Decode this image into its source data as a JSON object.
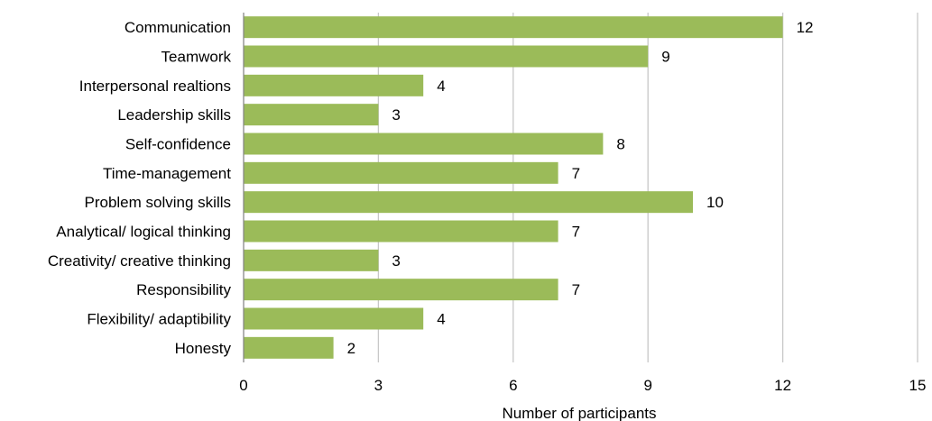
{
  "chart_data": {
    "type": "bar",
    "orientation": "horizontal",
    "categories": [
      "Communication",
      "Teamwork",
      "Interpersonal realtions",
      "Leadership skills",
      "Self-confidence",
      "Time-management",
      "Problem solving skills",
      "Analytical/ logical thinking",
      "Creativity/ creative thinking",
      "Responsibility",
      "Flexibility/ adaptibility",
      "Honesty"
    ],
    "values": [
      12,
      9,
      4,
      3,
      8,
      7,
      10,
      7,
      3,
      7,
      4,
      2
    ],
    "value_labels": [
      "12",
      "9",
      "4",
      "3",
      "8",
      "7",
      "10",
      "7",
      "3",
      "7",
      "4",
      "2"
    ],
    "xlabel": "Number of participants",
    "ylabel": "",
    "title": "",
    "xlim": [
      0,
      15
    ],
    "xticks": [
      "0",
      "3",
      "6",
      "9",
      "12",
      "15"
    ],
    "grid": true,
    "legend": "none",
    "colors": {
      "bar": "#9BBB59",
      "grid": "#C8C8C8",
      "axis": "#888888",
      "text": "#000000"
    }
  }
}
